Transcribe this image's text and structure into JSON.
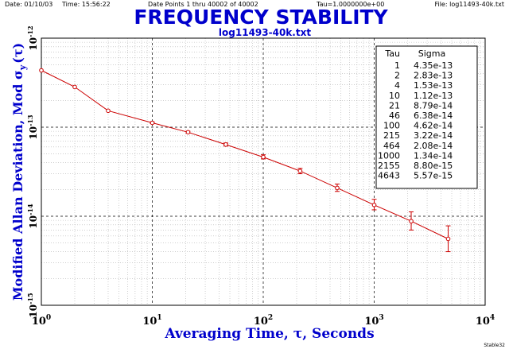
{
  "header": {
    "date": "Date: 01/10/03",
    "time": "Time: 15:56:22",
    "points": "Date Points 1 thru 40002 of 40002",
    "tau": "Tau=1.0000000e+00",
    "file": "File: log11493-40k.txt"
  },
  "footer": {
    "program": "Stable32"
  },
  "colors": {
    "title": "#0000cc",
    "data": "#cc0000",
    "axis": "#000000",
    "grid_minor": "#b0b0b0",
    "grid_major": "#000000"
  },
  "chart_data": {
    "type": "line",
    "title": "FREQUENCY STABILITY",
    "subtitle": "log11493-40k.txt",
    "xlabel": "Averaging Time, τ, Seconds",
    "ylabel_parts": [
      "Modified Allan Deviation, Mod σ",
      "y",
      "(τ)"
    ],
    "xscale": "log",
    "yscale": "log",
    "xlim": [
      1,
      10000
    ],
    "ylim": [
      1e-15,
      1e-12
    ],
    "x_ticks": [
      {
        "value": 1,
        "base": "10",
        "exp": "0"
      },
      {
        "value": 10,
        "base": "10",
        "exp": "1"
      },
      {
        "value": 100,
        "base": "10",
        "exp": "2"
      },
      {
        "value": 1000,
        "base": "10",
        "exp": "3"
      },
      {
        "value": 10000,
        "base": "10",
        "exp": "4"
      }
    ],
    "y_ticks": [
      {
        "value": 1e-12,
        "base": "10",
        "exp": "-12"
      },
      {
        "value": 1e-13,
        "base": "10",
        "exp": "-13"
      },
      {
        "value": 1e-14,
        "base": "10",
        "exp": "-14"
      },
      {
        "value": 1e-15,
        "base": "10",
        "exp": "-15"
      }
    ],
    "grid": true,
    "legend_position": "top-right",
    "table_headers": [
      "Tau",
      "Sigma"
    ],
    "table": [
      {
        "tau": "1",
        "sigma": "4.35e-13"
      },
      {
        "tau": "2",
        "sigma": "2.83e-13"
      },
      {
        "tau": "4",
        "sigma": "1.53e-13"
      },
      {
        "tau": "10",
        "sigma": "1.12e-13"
      },
      {
        "tau": "21",
        "sigma": "8.79e-14"
      },
      {
        "tau": "46",
        "sigma": "6.38e-14"
      },
      {
        "tau": "100",
        "sigma": "4.62e-14"
      },
      {
        "tau": "215",
        "sigma": "3.22e-14"
      },
      {
        "tau": "464",
        "sigma": "2.08e-14"
      },
      {
        "tau": "1000",
        "sigma": "1.34e-14"
      },
      {
        "tau": "2155",
        "sigma": "8.80e-15"
      },
      {
        "tau": "4643",
        "sigma": "5.57e-15"
      }
    ],
    "series": [
      {
        "points": [
          {
            "x": 1,
            "y": 4.35e-13,
            "err": [
              4.35e-13,
              4.35e-13
            ]
          },
          {
            "x": 2,
            "y": 2.83e-13,
            "err": [
              2.83e-13,
              2.83e-13
            ]
          },
          {
            "x": 4,
            "y": 1.53e-13,
            "err": [
              1.53e-13,
              1.53e-13
            ]
          },
          {
            "x": 10,
            "y": 1.12e-13,
            "err": [
              1.1e-13,
              1.14e-13
            ]
          },
          {
            "x": 21,
            "y": 8.79e-14,
            "err": [
              8.6e-14,
              9e-14
            ]
          },
          {
            "x": 46,
            "y": 6.38e-14,
            "err": [
              6.15e-14,
              6.65e-14
            ]
          },
          {
            "x": 100,
            "y": 4.62e-14,
            "err": [
              4.4e-14,
              4.9e-14
            ]
          },
          {
            "x": 215,
            "y": 3.22e-14,
            "err": [
              3e-14,
              3.45e-14
            ]
          },
          {
            "x": 464,
            "y": 2.08e-14,
            "err": [
              1.9e-14,
              2.3e-14
            ]
          },
          {
            "x": 1000,
            "y": 1.34e-14,
            "err": [
              1.18e-14,
              1.55e-14
            ]
          },
          {
            "x": 2155,
            "y": 8.8e-15,
            "err": [
              7e-15,
              1.12e-14
            ]
          },
          {
            "x": 4643,
            "y": 5.57e-15,
            "err": [
              4e-15,
              7.8e-15
            ]
          }
        ]
      }
    ]
  }
}
